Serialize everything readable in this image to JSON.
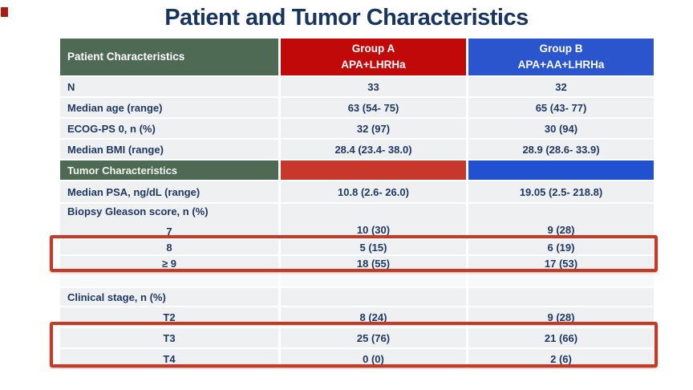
{
  "slide": {
    "title": "Patient and Tumor Characteristics"
  },
  "colors": {
    "title_text": "#17355e",
    "header_green": "#4e6a54",
    "header_red": "#c20909",
    "header_blue": "#2b55cd",
    "band_red": "#c7372b",
    "band_blue": "#2151d0",
    "row_background": "#eef0f1",
    "cell_text": "#1f3864",
    "highlight_border": "#c23a28",
    "corner_marker": "#ab1b10"
  },
  "table": {
    "columns": [
      {
        "label": "Patient Characteristics",
        "sublabel": ""
      },
      {
        "label": "Group A",
        "sublabel": "APA+LHRHa"
      },
      {
        "label": "Group B",
        "sublabel": "APA+AA+LHRHa"
      }
    ],
    "rows": [
      {
        "label": "N",
        "a": "33",
        "b": "32"
      },
      {
        "label": "Median age (range)",
        "a": "63 (54- 75)",
        "b": "65 (43- 77)"
      },
      {
        "label": "ECOG-PS 0, n (%)",
        "a": "32 (97)",
        "b": "30 (94)"
      },
      {
        "label": "Median BMI (range)",
        "a": "28.4 (23.4- 38.0)",
        "b": "28.9 (28.6- 33.9)"
      },
      {
        "label": "Tumor Characteristics",
        "a": "",
        "b": ""
      },
      {
        "label": "Median PSA, ng/dL (range)",
        "a": "10.8 (2.6- 26.0)",
        "b": "19.05 (2.5- 218.8)"
      },
      {
        "label": "Biopsy Gleason score, n (%)",
        "sublabel": "7",
        "a": "10 (30)",
        "b": "9 (28)"
      },
      {
        "label": "8",
        "a": "5 (15)",
        "b": "6 (19)"
      },
      {
        "label": "≥ 9",
        "a": "18 (55)",
        "b": "17 (53)"
      },
      {
        "label": "",
        "a": "",
        "b": ""
      },
      {
        "label": "Clinical stage, n (%)",
        "a": "",
        "b": ""
      },
      {
        "label": "T2",
        "a": "8 (24)",
        "b": "9 (28)"
      },
      {
        "label": "T3",
        "a": "25 (76)",
        "b": "21 (66)"
      },
      {
        "label": "T4",
        "a": "0 (0)",
        "b": "2 (6)"
      }
    ]
  }
}
